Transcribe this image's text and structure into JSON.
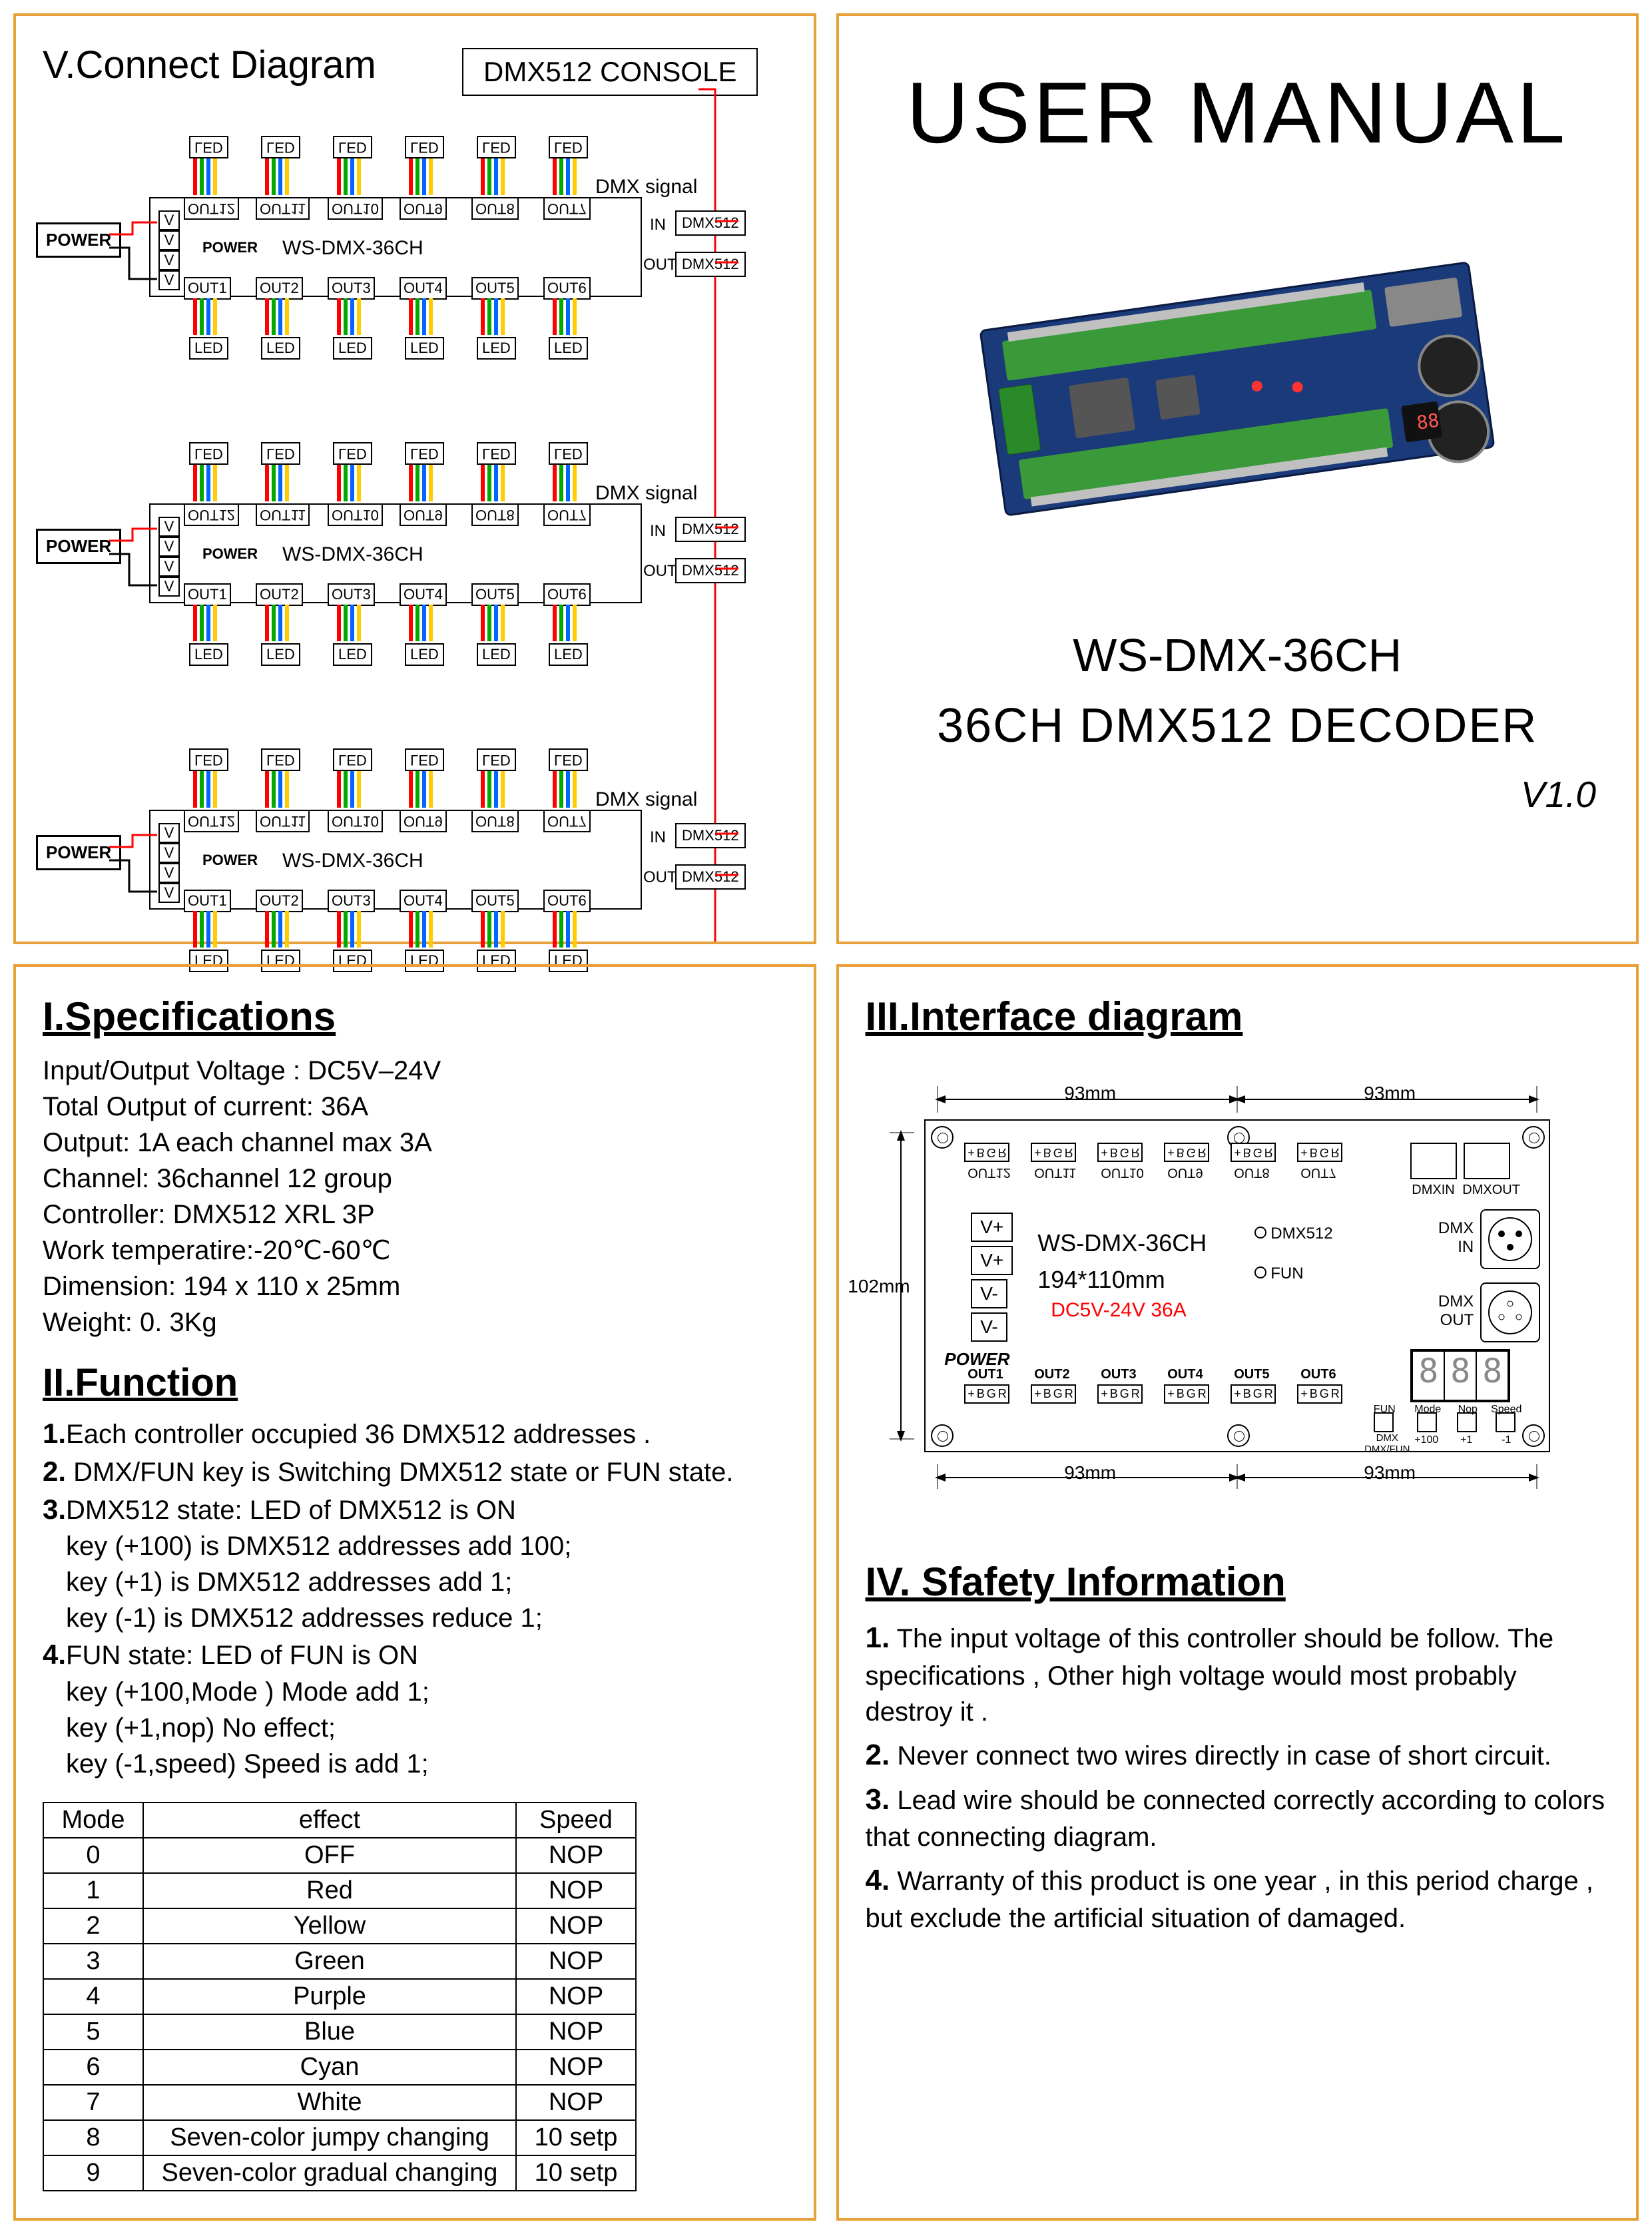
{
  "colors": {
    "border": "#e8a03a",
    "text": "#000000",
    "red": "#ff0000",
    "pcb_blue": "#1a3a6a",
    "pcb_green": "#3a9a3a",
    "wire_r": "#ff0000",
    "wire_g": "#00aa00",
    "wire_b": "#0066ff",
    "wire_y": "#ffcc00"
  },
  "topright": {
    "title": "USER MANUAL",
    "model": "WS-DMX-36CH",
    "subtitle": "36CH DMX512 DECODER",
    "version": "V1.0"
  },
  "connect": {
    "title": "V.Connect Diagram",
    "console": "DMX512 CONSOLE",
    "dmx_signal": "DMX signal",
    "power": "POWER",
    "model": "WS-DMX-36CH",
    "power_label": "POWER",
    "in": "IN",
    "out": "OUT",
    "dmx512": "DMX512",
    "outs": [
      "OUT1",
      "OUT2",
      "OUT3",
      "OUT4",
      "OUT5",
      "OUT6"
    ],
    "outs_top": [
      "OUT12",
      "OUT11",
      "OUT10",
      "OUT9",
      "OUT8",
      "OUT7"
    ],
    "led": "LED",
    "v": "V"
  },
  "spec": {
    "heading": "I.Specifications",
    "lines": [
      "Input/Output Voltage : DC5V–24V",
      "Total Output of current: 36A",
      "Output: 1A each channel max 3A",
      "Channel: 36channel 12 group",
      "Controller: DMX512 XRL 3P",
      "Work temperatire:-20℃-60℃",
      "Dimension: 194 x 110 x 25mm",
      "Weight: 0. 3Kg"
    ]
  },
  "func": {
    "heading": "II.Function",
    "items": [
      {
        "n": "1.",
        "t": "Each  controller  occupied 36 DMX512 addresses ."
      },
      {
        "n": "2.",
        "t": " DMX/FUN key is Switching  DMX512  state or FUN state."
      },
      {
        "n": "3.",
        "t": "DMX512  state:  LED of DMX512 is ON",
        "sub": [
          "key (+100) is DMX512  addresses  add 100;",
          "key (+1) is DMX512  addresses   add 1;",
          "key (-1) is DMX512  addresses   reduce 1;"
        ]
      },
      {
        "n": "4.",
        "t": "FUN  state:  LED of FUN  is ON",
        "sub": [
          "key (+100,Mode )  Mode  add 1;",
          "key (+1,nop)  No effect;",
          "key (-1,speed) Speed is add 1;"
        ]
      }
    ]
  },
  "modetable": {
    "headers": [
      "Mode",
      "effect",
      "Speed"
    ],
    "rows": [
      [
        "0",
        "OFF",
        "NOP"
      ],
      [
        "1",
        "Red",
        "NOP"
      ],
      [
        "2",
        "Yellow",
        "NOP"
      ],
      [
        "3",
        "Green",
        "NOP"
      ],
      [
        "4",
        "Purple",
        "NOP"
      ],
      [
        "5",
        "Blue",
        "NOP"
      ],
      [
        "6",
        "Cyan",
        "NOP"
      ],
      [
        "7",
        "White",
        "NOP"
      ],
      [
        "8",
        "Seven-color jumpy changing",
        "10 setp"
      ],
      [
        "9",
        "Seven-color gradual changing",
        "10 setp"
      ]
    ]
  },
  "iface": {
    "heading": "III.Interface diagram",
    "w1": "93mm",
    "w2": "93mm",
    "h": "102mm",
    "model": "WS-DMX-36CH",
    "size": "194*110mm",
    "power_spec": "DC5V-24V 36A",
    "power": "POWER",
    "dmx512": "DMX512",
    "fun": "FUN",
    "dmxin": "DMX IN",
    "dmxout": "DMX OUT",
    "dmxin_s": "DMXIN",
    "dmxout_s": "DMXOUT",
    "vp": "V+",
    "vm": "V-",
    "outs": [
      "OUT1",
      "OUT2",
      "OUT3",
      "OUT4",
      "OUT5",
      "OUT6"
    ],
    "outs_top": [
      "OUT12",
      "OUT11",
      "OUT10",
      "OUT9",
      "OUT8",
      "OUT7"
    ],
    "term": "+ B G R",
    "btns": [
      "FUN",
      "Mode",
      "Nop",
      "Speed"
    ],
    "btns2": [
      "DMX DMX/FUN",
      "+100",
      "+1",
      "-1"
    ],
    "seg": "888"
  },
  "safety": {
    "heading": "IV. Sfafety Information",
    "items": [
      {
        "n": "1.",
        "t": " The input voltage of this controller should be follow.  The specifications , Other high voltage would most  probably destroy it ."
      },
      {
        "n": "2.",
        "t": " Never connect two wires directly in case of short circuit."
      },
      {
        "n": "3.",
        "t": " Lead wire should be connected correctly according to colors that connecting diagram."
      },
      {
        "n": "4.",
        "t": " Warranty of this product is one year , in this period charge , but exclude the artificial situation of damaged."
      }
    ]
  }
}
